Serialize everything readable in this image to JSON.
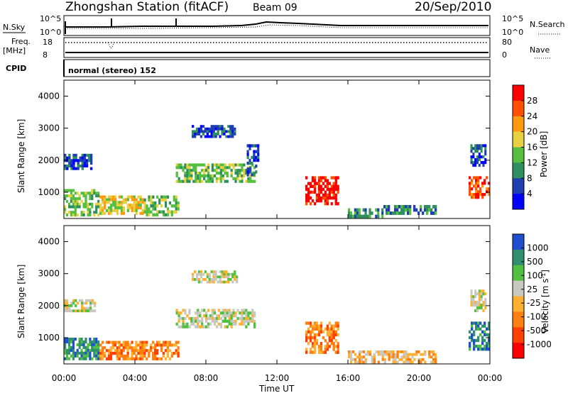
{
  "header": {
    "station": "Zhongshan Station (fitACF)",
    "beam": "Beam 09",
    "date": "20/Sep/2010"
  },
  "top_panel": {
    "left_label": "N.Sky",
    "right_label": "N.Search",
    "left_ticks": [
      "10^5",
      "10^0"
    ],
    "right_ticks": [
      "10^5",
      "10^0"
    ]
  },
  "freq_panel": {
    "left_label_1": "Freq.",
    "left_label_2": "[MHz]",
    "right_label": "Nave",
    "left_ticks": [
      "18",
      "8"
    ],
    "right_ticks": [
      "80",
      "0"
    ]
  },
  "cpid_panel": {
    "label": "CPID",
    "text": "normal (stereo) 152"
  },
  "x_axis": {
    "label": "Time UT",
    "ticks": [
      "00:00",
      "04:00",
      "08:00",
      "12:00",
      "16:00",
      "20:00",
      "00:00"
    ],
    "range_hours": [
      0,
      24
    ]
  },
  "power_panel": {
    "ylabel": "Slant Range [km]",
    "yticks": [
      1000,
      2000,
      3000,
      4000
    ],
    "ylim": [
      180,
      4500
    ],
    "colorbar_label": "Power [dB]",
    "colorbar_ticks": [
      "28",
      "24",
      "20",
      "16",
      "12",
      "8",
      "4"
    ],
    "colors": [
      "#0000ff",
      "#1f3fb0",
      "#2f8f5f",
      "#55c040",
      "#e8d040",
      "#ff9a10",
      "#ff5000",
      "#ff0000"
    ]
  },
  "velocity_panel": {
    "ylabel": "Slant Range [km]",
    "yticks": [
      1000,
      2000,
      3000,
      4000
    ],
    "ylim": [
      180,
      4500
    ],
    "colorbar_label": "Velocity [m s^-1]",
    "colorbar_ticks": [
      "1000",
      "500",
      "100",
      "25",
      "-25",
      "-100",
      "-500",
      "-1000"
    ],
    "colors": [
      "#1f4fd0",
      "#2f8f6f",
      "#50c040",
      "#c8c8c0",
      "#ffb030",
      "#ff8010",
      "#ff4000",
      "#ff0000"
    ]
  },
  "chart_data": {
    "type": "heatmap",
    "x_unit": "hours UT",
    "y_unit": "km",
    "power_regions": [
      {
        "t": [
          0.0,
          1.6
        ],
        "r": [
          1700,
          2200
        ],
        "level": 1
      },
      {
        "t": [
          0.0,
          2.0
        ],
        "r": [
          250,
          1100
        ],
        "level": 3
      },
      {
        "t": [
          2.0,
          4.5
        ],
        "r": [
          300,
          900
        ],
        "level": 4
      },
      {
        "t": [
          4.5,
          6.5
        ],
        "r": [
          250,
          900
        ],
        "level": 3
      },
      {
        "t": [
          6.3,
          10.8
        ],
        "r": [
          1300,
          1900
        ],
        "level": 3
      },
      {
        "t": [
          7.2,
          9.8
        ],
        "r": [
          2700,
          3100
        ],
        "level": 1
      },
      {
        "t": [
          10.3,
          11.0
        ],
        "r": [
          1500,
          2500
        ],
        "level": 1
      },
      {
        "t": [
          13.6,
          15.5
        ],
        "r": [
          600,
          1500
        ],
        "level": 7
      },
      {
        "t": [
          16.0,
          18.0
        ],
        "r": [
          200,
          500
        ],
        "level": 2
      },
      {
        "t": [
          18.0,
          21.0
        ],
        "r": [
          300,
          600
        ],
        "level": 2
      },
      {
        "t": [
          22.8,
          24.0
        ],
        "r": [
          800,
          1500
        ],
        "level": 6
      },
      {
        "t": [
          22.9,
          23.8
        ],
        "r": [
          1800,
          2500
        ],
        "level": 1
      }
    ],
    "velocity_regions": [
      {
        "t": [
          0.0,
          1.8
        ],
        "r": [
          1800,
          2200
        ],
        "level": 3
      },
      {
        "t": [
          0.0,
          2.0
        ],
        "r": [
          300,
          1000
        ],
        "level": 1
      },
      {
        "t": [
          2.0,
          6.5
        ],
        "r": [
          300,
          900
        ],
        "level": 5
      },
      {
        "t": [
          6.3,
          10.8
        ],
        "r": [
          1300,
          1900
        ],
        "level": 3
      },
      {
        "t": [
          7.2,
          9.8
        ],
        "r": [
          2700,
          3100
        ],
        "level": 3
      },
      {
        "t": [
          13.6,
          15.5
        ],
        "r": [
          500,
          1500
        ],
        "level": 5
      },
      {
        "t": [
          16.0,
          21.0
        ],
        "r": [
          200,
          600
        ],
        "level": 4
      },
      {
        "t": [
          22.8,
          24.0
        ],
        "r": [
          600,
          1500
        ],
        "level": 1
      },
      {
        "t": [
          22.9,
          23.8
        ],
        "r": [
          1800,
          2500
        ],
        "level": 3
      }
    ]
  }
}
